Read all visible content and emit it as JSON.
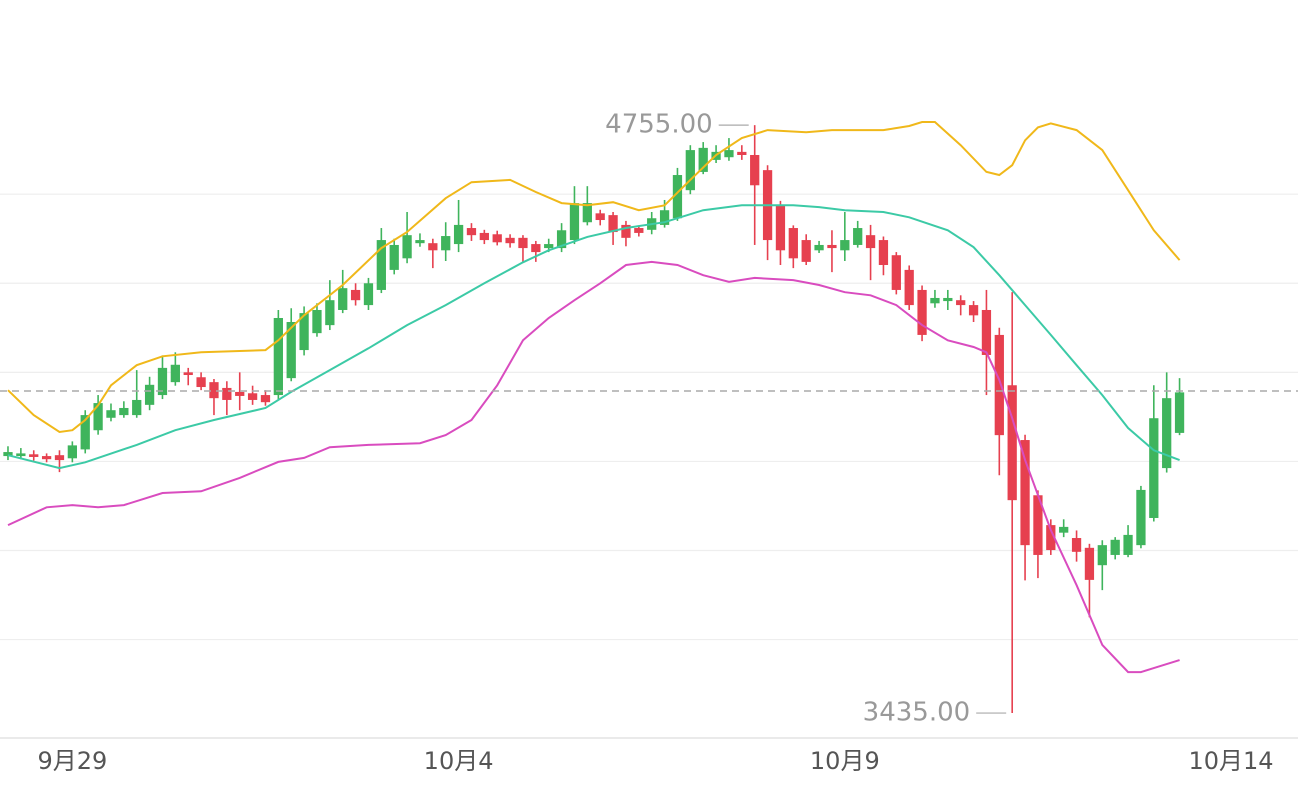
{
  "chart_data": {
    "type": "candlestick",
    "open": [
      4012,
      4012,
      4016,
      4012,
      4014,
      4007,
      4027,
      4070,
      4098,
      4104,
      4104,
      4127,
      4149,
      4178,
      4200,
      4189,
      4178,
      4165,
      4156,
      4153,
      4149,
      4149,
      4187,
      4250,
      4288,
      4306,
      4340,
      4385,
      4351,
      4385,
      4430,
      4456,
      4490,
      4490,
      4474,
      4488,
      4524,
      4513,
      4510,
      4502,
      4502,
      4488,
      4479,
      4479,
      4497,
      4537,
      4557,
      4553,
      4531,
      4524,
      4520,
      4531,
      4546,
      4609,
      4650,
      4677,
      4683,
      4695,
      4688,
      4654,
      4575,
      4524,
      4497,
      4474,
      4486,
      4474,
      4486,
      4508,
      4497,
      4463,
      4430,
      4385,
      4355,
      4360,
      4362,
      4351,
      4340,
      4284,
      4171,
      4048,
      3924,
      3857,
      3840,
      3828,
      3806,
      3767,
      3790,
      3790,
      3812,
      3873,
      3985,
      4064
    ],
    "high": [
      4034,
      4030,
      4025,
      4018,
      4025,
      4045,
      4115,
      4149,
      4130,
      4135,
      4205,
      4190,
      4238,
      4245,
      4210,
      4200,
      4185,
      4180,
      4200,
      4170,
      4160,
      4340,
      4344,
      4348,
      4355,
      4407,
      4430,
      4400,
      4412,
      4524,
      4500,
      4560,
      4512,
      4500,
      4537,
      4587,
      4535,
      4520,
      4518,
      4510,
      4508,
      4495,
      4500,
      4535,
      4618,
      4618,
      4565,
      4560,
      4540,
      4530,
      4560,
      4587,
      4659,
      4710,
      4717,
      4710,
      4726,
      4710,
      4755,
      4665,
      4585,
      4530,
      4510,
      4495,
      4519,
      4560,
      4540,
      4531,
      4505,
      4470,
      4440,
      4395,
      4385,
      4385,
      4373,
      4360,
      4385,
      4300,
      4380,
      4060,
      3935,
      3870,
      3870,
      3845,
      3815,
      3823,
      3830,
      3857,
      3945,
      4171,
      4200,
      4187
    ],
    "low": [
      4003,
      4005,
      4002,
      3998,
      3976,
      3998,
      4018,
      4060,
      4090,
      4098,
      4098,
      4115,
      4140,
      4170,
      4171,
      4160,
      4104,
      4104,
      4115,
      4127,
      4125,
      4140,
      4180,
      4238,
      4280,
      4295,
      4333,
      4350,
      4340,
      4378,
      4420,
      4445,
      4482,
      4434,
      4450,
      4470,
      4495,
      4488,
      4485,
      4480,
      4448,
      4448,
      4470,
      4470,
      4488,
      4530,
      4530,
      4486,
      4483,
      4505,
      4510,
      4525,
      4540,
      4600,
      4645,
      4670,
      4675,
      4677,
      4486,
      4452,
      4441,
      4434,
      4441,
      4468,
      4425,
      4450,
      4480,
      4407,
      4418,
      4375,
      4340,
      4270,
      4345,
      4340,
      4328,
      4313,
      4149,
      3969,
      3435,
      3733,
      3738,
      3790,
      3830,
      3775,
      3650,
      3711,
      3780,
      3785,
      3805,
      3865,
      3975,
      4059
    ],
    "close": [
      4021,
      4018,
      4010,
      4005,
      4003,
      4036,
      4104,
      4131,
      4115,
      4120,
      4138,
      4172,
      4210,
      4217,
      4194,
      4167,
      4142,
      4138,
      4147,
      4138,
      4133,
      4322,
      4313,
      4333,
      4340,
      4362,
      4389,
      4362,
      4400,
      4497,
      4486,
      4508,
      4497,
      4474,
      4506,
      4531,
      4508,
      4497,
      4492,
      4490,
      4479,
      4470,
      4488,
      4519,
      4580,
      4580,
      4542,
      4515,
      4502,
      4513,
      4546,
      4564,
      4643,
      4699,
      4704,
      4695,
      4699,
      4688,
      4620,
      4497,
      4474,
      4456,
      4448,
      4486,
      4479,
      4497,
      4524,
      4479,
      4441,
      4385,
      4351,
      4284,
      4367,
      4367,
      4351,
      4328,
      4239,
      4059,
      3913,
      3812,
      3790,
      3801,
      3853,
      3797,
      3734,
      3812,
      3824,
      3835,
      3936,
      4097,
      4142,
      4155
    ],
    "up_color": "#3fb45c",
    "down_color": "#e6404f",
    "lines": [
      {
        "color": "#f0b81a",
        "x": [
          0,
          2,
          4,
          5,
          6,
          7,
          8,
          10,
          12,
          15,
          20,
          21,
          23,
          26,
          29,
          31,
          34,
          36,
          39,
          41,
          43,
          45,
          47,
          49,
          51,
          53,
          55,
          57,
          59,
          62,
          64,
          68,
          70,
          71,
          72,
          74,
          76,
          77,
          78,
          79,
          80,
          81,
          83,
          85,
          87,
          89,
          91
        ],
        "values": [
          4160,
          4104,
          4066,
          4070,
          4093,
          4126,
          4171,
          4216,
          4236,
          4245,
          4250,
          4272,
          4328,
          4396,
          4479,
          4515,
          4591,
          4627,
          4632,
          4605,
          4580,
          4575,
          4582,
          4564,
          4575,
          4632,
          4688,
          4726,
          4744,
          4739,
          4744,
          4744,
          4753,
          4762,
          4762,
          4710,
          4650,
          4643,
          4665,
          4721,
          4750,
          4759,
          4744,
          4699,
          4609,
          4519,
          4452
        ]
      },
      {
        "color": "#3ccaa6",
        "x": [
          0,
          4,
          6,
          10,
          13,
          16,
          20,
          22,
          25,
          28,
          31,
          34,
          37,
          40,
          42,
          45,
          48,
          51,
          54,
          57,
          61,
          63,
          65,
          68,
          70,
          73,
          75,
          77,
          79,
          81,
          83,
          85,
          87,
          89,
          91
        ],
        "values": [
          4014,
          3985,
          3998,
          4037,
          4070,
          4093,
          4120,
          4156,
          4205,
          4254,
          4306,
          4351,
          4400,
          4447,
          4474,
          4504,
          4524,
          4537,
          4564,
          4575,
          4575,
          4571,
          4564,
          4560,
          4548,
          4519,
          4481,
          4418,
          4351,
          4284,
          4216,
          4149,
          4075,
          4025,
          4003
        ]
      },
      {
        "color": "#d94cbf",
        "x": [
          0,
          3,
          5,
          7,
          9,
          12,
          15,
          18,
          21,
          23,
          25,
          28,
          32,
          34,
          36,
          38,
          40,
          42,
          44,
          46,
          48,
          50,
          52,
          54,
          56,
          58,
          61,
          63,
          65,
          67,
          69,
          71,
          73,
          75,
          76,
          77,
          78,
          79,
          81,
          83,
          85,
          87,
          88,
          89,
          91
        ],
        "values": [
          3857,
          3897,
          3902,
          3897,
          3902,
          3929,
          3933,
          3963,
          3999,
          4008,
          4032,
          4037,
          4041,
          4059,
          4093,
          4171,
          4272,
          4322,
          4362,
          4400,
          4441,
          4448,
          4441,
          4418,
          4403,
          4412,
          4407,
          4396,
          4380,
          4373,
          4351,
          4306,
          4272,
          4257,
          4245,
          4183,
          4097,
          4003,
          3846,
          3722,
          3588,
          3527,
          3527,
          3536,
          3554
        ]
      }
    ],
    "last_price": 4158,
    "annotations": [
      {
        "value": 4755,
        "label": "4755.00"
      },
      {
        "value": 3435,
        "label": "3435.00"
      }
    ],
    "categories_ticks": [
      {
        "value": 5,
        "label": "9月29"
      },
      {
        "value": 35,
        "label": "10月4"
      },
      {
        "value": 65,
        "label": "10月9"
      },
      {
        "value": 95,
        "label": "10月14"
      }
    ],
    "xlim": [
      -0.62,
      100.2
    ],
    "ylim": [
      3379,
      5036
    ],
    "yticks": [
      3600,
      3800,
      4000,
      4200,
      4400,
      4600
    ],
    "grid": true
  }
}
